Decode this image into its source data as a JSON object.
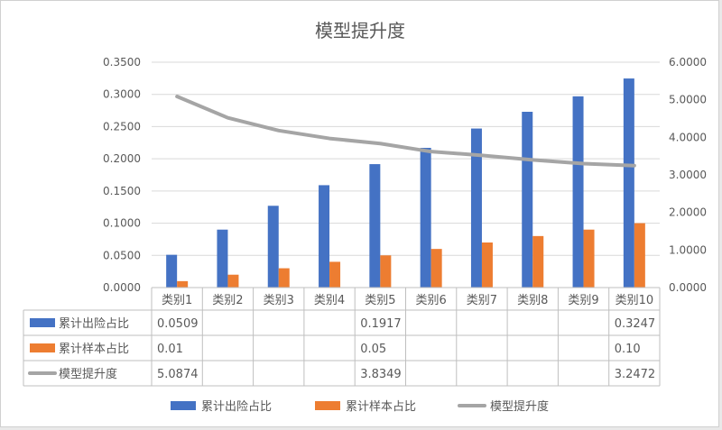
{
  "chart_data": {
    "type": "bar+line",
    "title": "模型提升度",
    "categories": [
      "类别1",
      "类别2",
      "类别3",
      "类别4",
      "类别5",
      "类别6",
      "类别7",
      "类别8",
      "类别9",
      "类别10"
    ],
    "y_left": {
      "min": 0,
      "max": 0.35,
      "step": 0.05,
      "tick_labels": [
        "0.0000",
        "0.0500",
        "0.1000",
        "0.1500",
        "0.2000",
        "0.2500",
        "0.3000",
        "0.3500"
      ]
    },
    "y_right": {
      "min": 0,
      "max": 6,
      "step": 1,
      "tick_labels": [
        "0.0000",
        "1.0000",
        "2.0000",
        "3.0000",
        "4.0000",
        "5.0000",
        "6.0000"
      ]
    },
    "series": [
      {
        "name": "累计出险占比",
        "type": "bar",
        "axis": "left",
        "color": "#4472c4",
        "values": [
          0.0509,
          0.09,
          0.127,
          0.159,
          0.1917,
          0.217,
          0.247,
          0.273,
          0.297,
          0.3247
        ]
      },
      {
        "name": "累计样本占比",
        "type": "bar",
        "axis": "left",
        "color": "#ed7d31",
        "values": [
          0.01,
          0.02,
          0.03,
          0.04,
          0.05,
          0.06,
          0.07,
          0.08,
          0.09,
          0.1
        ]
      },
      {
        "name": "模型提升度",
        "type": "line",
        "axis": "right",
        "color": "#a5a5a5",
        "values": [
          5.0874,
          4.52,
          4.18,
          3.97,
          3.8349,
          3.62,
          3.52,
          3.4,
          3.3,
          3.2472
        ]
      }
    ],
    "grid": true,
    "legend": "bottom",
    "data_table": {
      "rows": [
        {
          "label": "累计出险占比",
          "cells": [
            "0.0509",
            "",
            "",
            "",
            "0.1917",
            "",
            "",
            "",
            "",
            "0.3247"
          ]
        },
        {
          "label": "累计样本占比",
          "cells": [
            "0.01",
            "",
            "",
            "",
            "0.05",
            "",
            "",
            "",
            "",
            "0.10"
          ]
        },
        {
          "label": "模型提升度",
          "cells": [
            "5.0874",
            "",
            "",
            "",
            "3.8349",
            "",
            "",
            "",
            "",
            "3.2472"
          ]
        }
      ]
    }
  }
}
